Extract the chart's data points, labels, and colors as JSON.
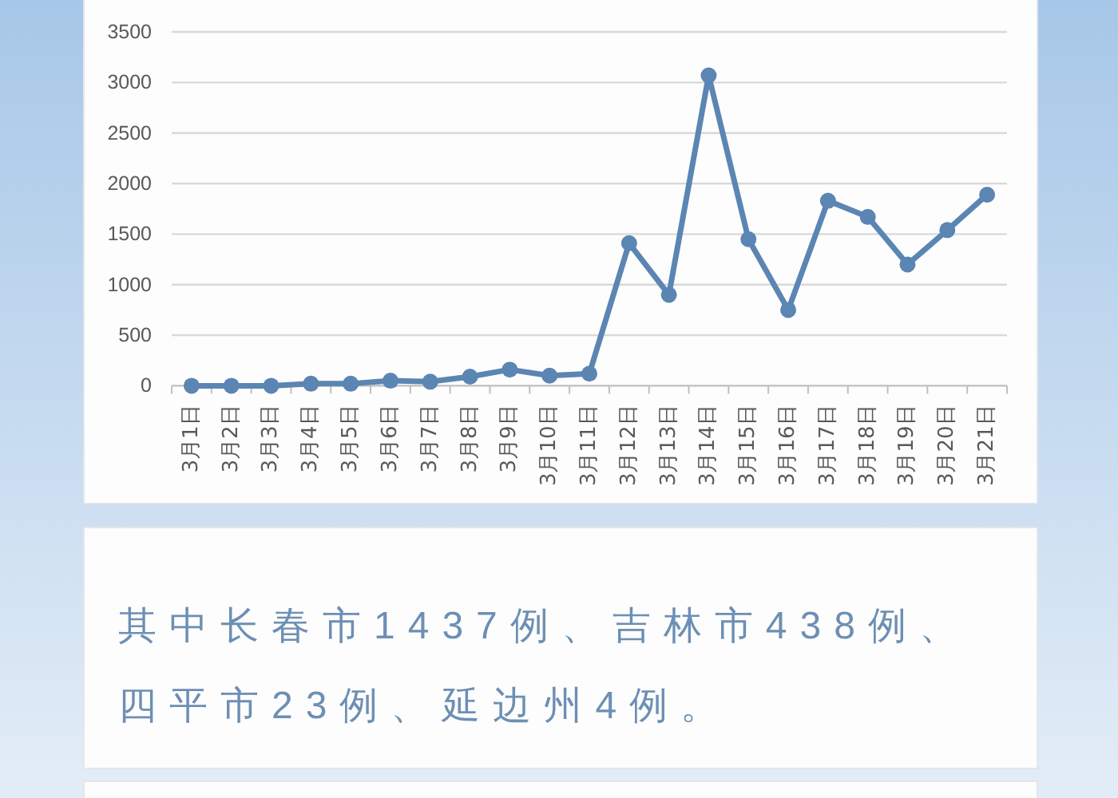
{
  "chart_data": {
    "type": "line",
    "categories": [
      "3月1日",
      "3月2日",
      "3月3日",
      "3月4日",
      "3月5日",
      "3月6日",
      "3月7日",
      "3月8日",
      "3月9日",
      "3月10日",
      "3月11日",
      "3月12日",
      "3月13日",
      "3月14日",
      "3月15日",
      "3月16日",
      "3月17日",
      "3月18日",
      "3月19日",
      "3月20日",
      "3月21日"
    ],
    "values": [
      0,
      0,
      0,
      20,
      20,
      50,
      40,
      90,
      160,
      100,
      120,
      1410,
      900,
      3070,
      1450,
      750,
      1830,
      1670,
      1200,
      1540,
      1890
    ],
    "color": "#5b85b3",
    "ylim": [
      0,
      3500
    ],
    "yticks": [
      0,
      500,
      1000,
      1500,
      2000,
      2500,
      3000,
      3500
    ],
    "grid": "y",
    "marker": "circle",
    "line_style": "solid",
    "annotations": [
      "其中长春市1437例、吉林市438例、四平市23例、延边州4例。"
    ]
  }
}
